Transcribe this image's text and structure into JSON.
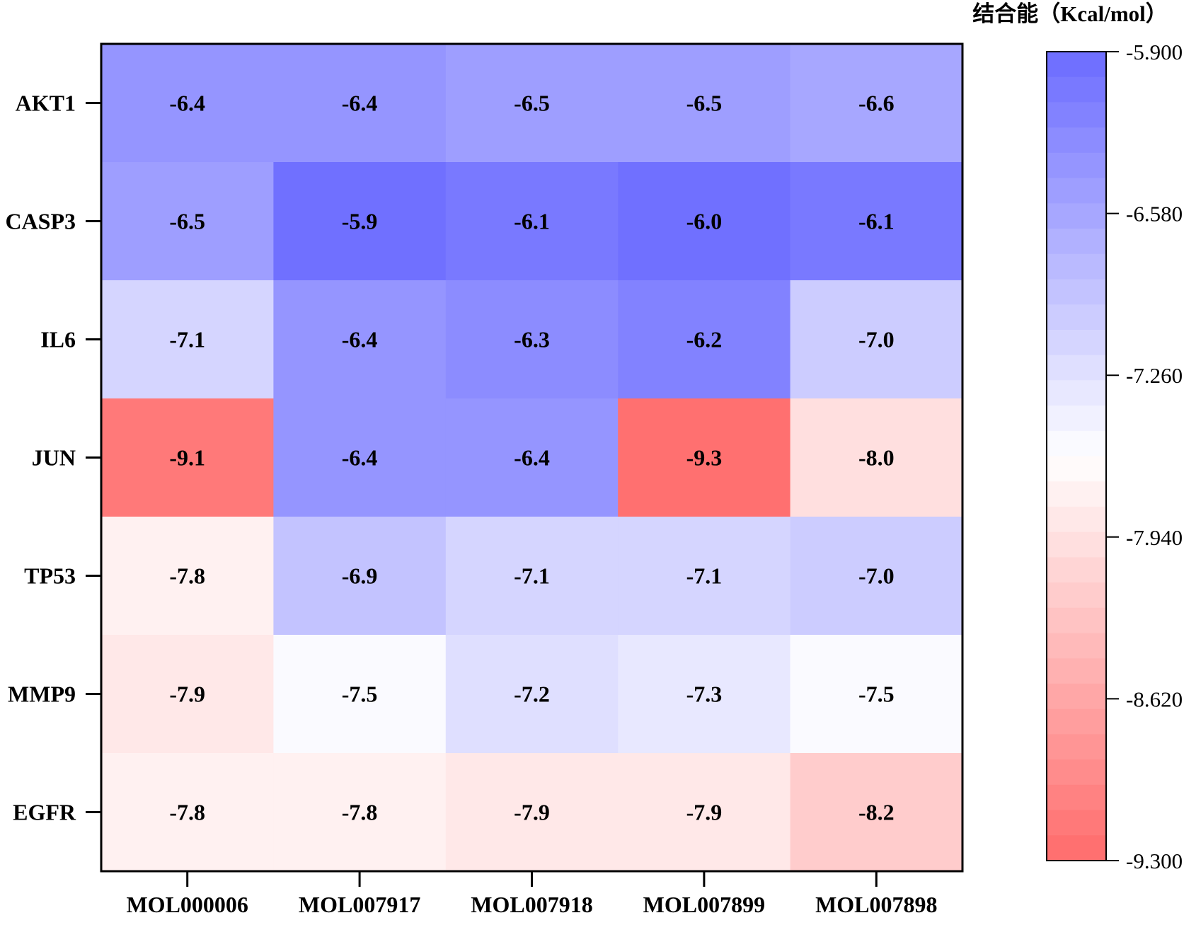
{
  "chart_data": {
    "type": "heatmap",
    "rows": [
      "AKT1",
      "CASP3",
      "IL6",
      "JUN",
      "TP53",
      "MMP9",
      "EGFR"
    ],
    "columns": [
      "MOL000006",
      "MOL007917",
      "MOL007918",
      "MOL007899",
      "MOL007898"
    ],
    "values": [
      [
        -6.4,
        -6.4,
        -6.5,
        -6.5,
        -6.6
      ],
      [
        -6.5,
        -5.9,
        -6.1,
        -6.0,
        -6.1
      ],
      [
        -7.1,
        -6.4,
        -6.3,
        -6.2,
        -7.0
      ],
      [
        -9.1,
        -6.4,
        -6.4,
        -9.3,
        -8.0
      ],
      [
        -7.8,
        -6.9,
        -7.1,
        -7.1,
        -7.0
      ],
      [
        -7.9,
        -7.5,
        -7.2,
        -7.3,
        -7.5
      ],
      [
        -7.8,
        -7.8,
        -7.9,
        -7.9,
        -8.2
      ]
    ],
    "cell_labels": [
      [
        "-6.4",
        "-6.4",
        "-6.5",
        "-6.5",
        "-6.6"
      ],
      [
        "-6.5",
        "-5.9",
        "-6.1",
        "-6.0",
        "-6.1"
      ],
      [
        "-7.1",
        "-6.4",
        "-6.3",
        "-6.2",
        "-7.0"
      ],
      [
        "-9.1",
        "-6.4",
        "-6.4",
        "-9.3",
        "-8.0"
      ],
      [
        "-7.8",
        "-6.9",
        "-7.1",
        "-7.1",
        "-7.0"
      ],
      [
        "-7.9",
        "-7.5",
        "-7.2",
        "-7.3",
        "-7.5"
      ],
      [
        "-7.8",
        "-7.8",
        "-7.9",
        "-7.9",
        "-8.2"
      ]
    ],
    "colorbar": {
      "title": "结合能（Kcal/mol）",
      "min": -9.3,
      "max": -5.9,
      "tick_values": [
        -5.9,
        -6.58,
        -7.26,
        -7.94,
        -8.62,
        -9.3
      ],
      "tick_labels": [
        "-5.900",
        "-6.580",
        "-7.260",
        "-7.940",
        "-8.620",
        "-9.300"
      ],
      "steps": 32,
      "color_max": "#7070ff",
      "color_mid": "#ffffff",
      "color_min": "#ff7070",
      "placement": "right"
    }
  }
}
